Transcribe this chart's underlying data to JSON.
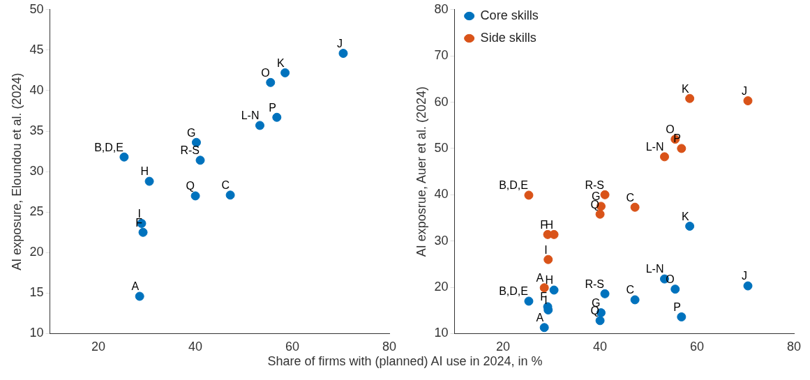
{
  "chart_data": [
    {
      "type": "scatter",
      "xlabel": "Share of firms with (planned) AI use in 2024, in %",
      "ylabel": "AI exposure, Eloundou et al. (2024)",
      "xlim": [
        10,
        80
      ],
      "xticks": [
        20,
        40,
        60,
        80
      ],
      "ylim": [
        10,
        50
      ],
      "yticks": [
        10,
        15,
        20,
        25,
        30,
        35,
        40,
        45,
        50
      ],
      "grid": false,
      "legend": false,
      "marker": "circle",
      "series": [
        {
          "color": "#0072bd",
          "x": [
            28.5,
            25.3,
            47.2,
            29.2,
            40.2,
            30.5,
            28.9,
            70.5,
            58.5,
            53.3,
            55.5,
            56.8,
            40.0,
            41.0
          ],
          "values": [
            14.6,
            31.8,
            27.1,
            22.5,
            33.6,
            28.8,
            23.6,
            44.6,
            42.2,
            35.7,
            41.0,
            36.7,
            27.0,
            31.4
          ]
        }
      ],
      "annotations": [
        {
          "text": "A",
          "x": 28.5,
          "y": 14.6
        },
        {
          "text": "B,D,E",
          "x": 25.3,
          "y": 31.8
        },
        {
          "text": "C",
          "x": 47.2,
          "y": 27.1
        },
        {
          "text": "F",
          "x": 29.2,
          "y": 22.5
        },
        {
          "text": "G",
          "x": 40.2,
          "y": 33.6
        },
        {
          "text": "H",
          "x": 30.5,
          "y": 28.8
        },
        {
          "text": "I",
          "x": 28.9,
          "y": 23.6
        },
        {
          "text": "J",
          "x": 70.5,
          "y": 44.6
        },
        {
          "text": "K",
          "x": 58.5,
          "y": 42.2
        },
        {
          "text": "L-N",
          "x": 53.3,
          "y": 35.7
        },
        {
          "text": "O",
          "x": 55.5,
          "y": 41.0
        },
        {
          "text": "P",
          "x": 56.8,
          "y": 36.7
        },
        {
          "text": "Q",
          "x": 40.0,
          "y": 27.0
        },
        {
          "text": "R-S",
          "x": 41.0,
          "y": 31.4
        }
      ]
    },
    {
      "type": "scatter",
      "ylabel": "AI exposrue, Auer et al. (2024)",
      "xlim": [
        10,
        80
      ],
      "xticks": [
        20,
        40,
        60,
        80
      ],
      "ylim": [
        10,
        80
      ],
      "yticks": [
        10,
        20,
        30,
        40,
        50,
        60,
        70,
        80
      ],
      "grid": false,
      "legend": "top left",
      "marker": "circle",
      "series": [
        {
          "name": "Core skills",
          "color": "#0072bd",
          "x": [
            28.5,
            25.3,
            47.2,
            29.2,
            40.2,
            30.5,
            29.3,
            70.5,
            58.5,
            53.3,
            55.5,
            56.8,
            40.0,
            41.0
          ],
          "values": [
            11.3,
            17.0,
            17.3,
            15.8,
            14.5,
            19.4,
            15.1,
            20.3,
            33.2,
            21.8,
            19.6,
            13.6,
            12.8,
            18.6
          ]
        },
        {
          "name": "Side skills",
          "color": "#d95319",
          "x": [
            28.5,
            25.3,
            47.2,
            29.2,
            40.2,
            30.5,
            29.3,
            70.5,
            58.5,
            53.3,
            55.5,
            56.8,
            40.0,
            41.0
          ],
          "values": [
            19.9,
            39.9,
            37.3,
            31.4,
            37.5,
            31.4,
            26.0,
            60.3,
            60.8,
            48.2,
            52.0,
            50.0,
            35.8,
            40.0
          ]
        }
      ],
      "annotations": [
        {
          "text": "A",
          "x": 28.5,
          "y": 11.3
        },
        {
          "text": "B,D,E",
          "x": 25.3,
          "y": 17.0
        },
        {
          "text": "C",
          "x": 47.2,
          "y": 17.3
        },
        {
          "text": "F",
          "x": 29.2,
          "y": 15.8
        },
        {
          "text": "G",
          "x": 40.2,
          "y": 14.5
        },
        {
          "text": "H",
          "x": 30.5,
          "y": 19.4
        },
        {
          "text": "I",
          "x": 29.3,
          "y": 15.1
        },
        {
          "text": "J",
          "x": 70.5,
          "y": 20.3
        },
        {
          "text": "K",
          "x": 58.5,
          "y": 33.2
        },
        {
          "text": "L-N",
          "x": 53.3,
          "y": 21.8
        },
        {
          "text": "O",
          "x": 55.5,
          "y": 19.6
        },
        {
          "text": "P",
          "x": 56.8,
          "y": 13.6
        },
        {
          "text": "Q",
          "x": 40.0,
          "y": 12.8
        },
        {
          "text": "R-S",
          "x": 41.0,
          "y": 18.6
        },
        {
          "text": "A",
          "x": 28.5,
          "y": 19.9
        },
        {
          "text": "B,D,E",
          "x": 25.3,
          "y": 39.9
        },
        {
          "text": "C",
          "x": 47.2,
          "y": 37.3
        },
        {
          "text": "F",
          "x": 29.2,
          "y": 31.4
        },
        {
          "text": "G",
          "x": 40.2,
          "y": 37.5
        },
        {
          "text": "H",
          "x": 30.5,
          "y": 31.4
        },
        {
          "text": "I",
          "x": 29.3,
          "y": 26.0
        },
        {
          "text": "J",
          "x": 70.5,
          "y": 60.3
        },
        {
          "text": "K",
          "x": 58.5,
          "y": 60.8
        },
        {
          "text": "L-N",
          "x": 53.3,
          "y": 48.2
        },
        {
          "text": "O",
          "x": 55.5,
          "y": 52.0
        },
        {
          "text": "P",
          "x": 56.8,
          "y": 50.0
        },
        {
          "text": "Q",
          "x": 40.0,
          "y": 35.8
        },
        {
          "text": "R-S",
          "x": 41.0,
          "y": 40.0
        }
      ]
    }
  ]
}
